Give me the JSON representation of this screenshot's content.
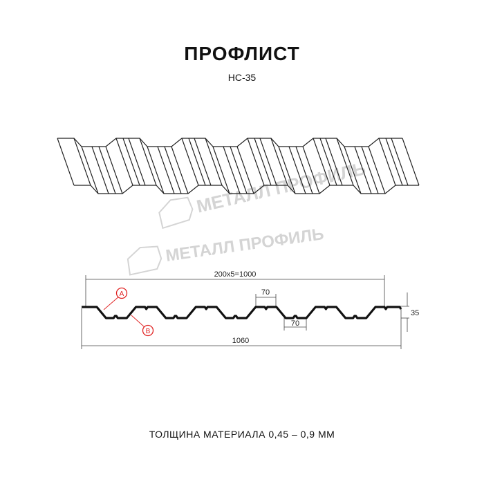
{
  "title": "ПРОФЛИСТ",
  "model": "НС-35",
  "watermark": "МЕТАЛЛ ПРОФИЛЬ",
  "dimensions": {
    "pitch": "200x5=1000",
    "top_width": "70",
    "bottom_width": "70",
    "height": "35",
    "total_width": "1060"
  },
  "markers": {
    "a": "A",
    "b": "B"
  },
  "marker_color": "#e02020",
  "footer": "ТОЛЩИНА МАТЕРИАЛА 0,45 – 0,9 ММ"
}
